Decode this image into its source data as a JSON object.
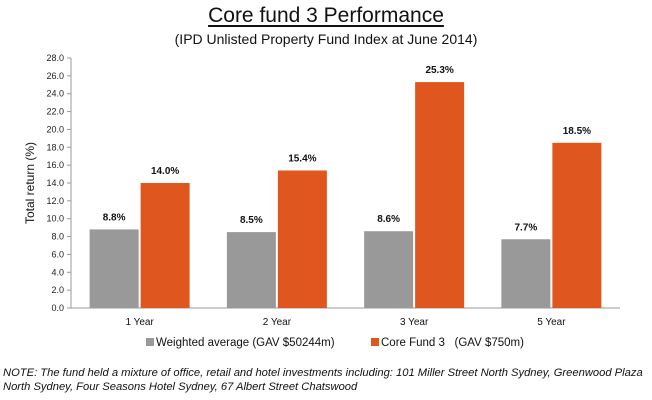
{
  "chart_data": {
    "type": "bar",
    "title": "Core fund 3 Performance",
    "subtitle": "(IPD Unlisted Property Fund Index at June 2014)",
    "xlabel": "",
    "ylabel": "Total return (%)",
    "ylim": [
      0,
      28
    ],
    "ytick_step": 2,
    "ytick_labels": [
      "0.0",
      "2.0",
      "4.0",
      "6.0",
      "8.0",
      "10.0",
      "12.0",
      "14.0",
      "16.0",
      "18.0",
      "20.0",
      "22.0",
      "24.0",
      "26.0",
      "28.0"
    ],
    "grid": false,
    "legend_position": "bottom",
    "categories": [
      "1 Year",
      "2 Year",
      "3 Year",
      "5 Year"
    ],
    "series": [
      {
        "name": "Weighted average (GAV $50244m)",
        "color": "#999999",
        "values": [
          8.8,
          8.5,
          8.6,
          7.7
        ],
        "labels": [
          "8.8%",
          "8.5%",
          "8.6%",
          "7.7%"
        ]
      },
      {
        "name": "Core Fund 3   (GAV $750m)",
        "color": "#e0561f",
        "values": [
          14.0,
          15.4,
          25.3,
          18.5
        ],
        "labels": [
          "14.0%",
          "15.4%",
          "25.3%",
          "18.5%"
        ]
      }
    ]
  },
  "note": "NOTE: The fund held a mixture of office, retail and hotel investments including: 101 Miller Street North Sydney, Greenwood Plaza North Sydney, Four Seasons Hotel Sydney, 67 Albert Street Chatswood"
}
